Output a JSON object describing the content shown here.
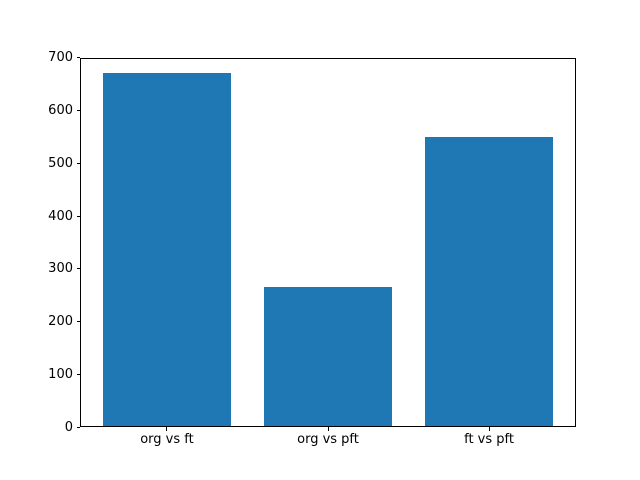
{
  "figure": {
    "title": "",
    "background_color": "#ffffff",
    "spine_color": "#000000",
    "text_color": "#000000"
  },
  "chart_data": {
    "type": "bar",
    "categories": [
      "org vs ft",
      "org vs pft",
      "ft vs pft"
    ],
    "values": [
      670,
      265,
      550
    ],
    "title": "",
    "xlabel": "",
    "ylabel": "",
    "ylim": [
      0,
      700
    ],
    "yticks": [
      0,
      100,
      200,
      300,
      400,
      500,
      600,
      700
    ],
    "bar_color": "#1f77b4",
    "bar_width_fraction": 0.8,
    "grid": false,
    "legend": null
  }
}
